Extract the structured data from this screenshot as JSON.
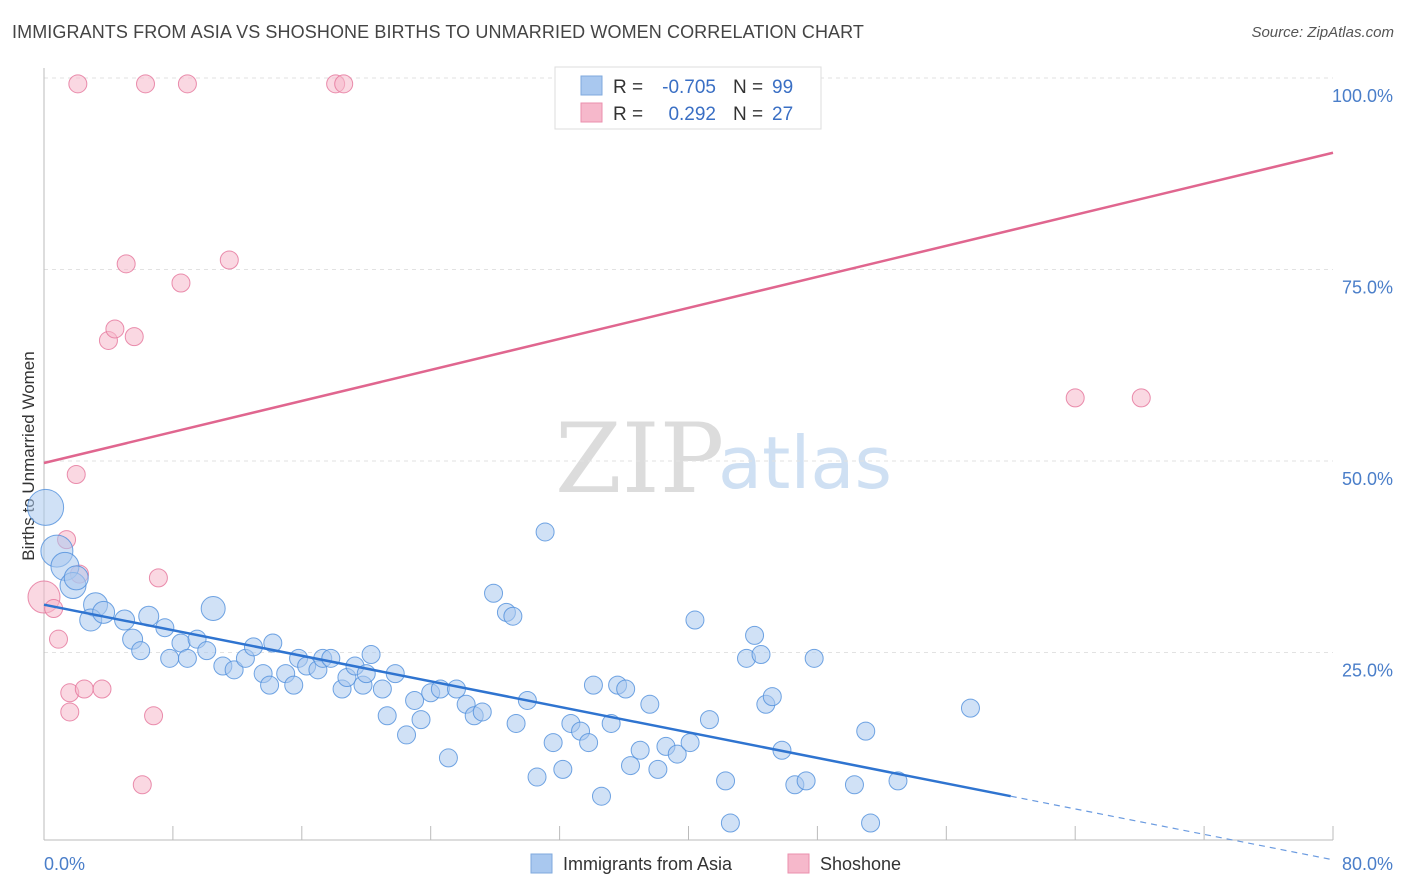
{
  "header": {
    "title": "IMMIGRANTS FROM ASIA VS SHOSHONE BIRTHS TO UNMARRIED WOMEN CORRELATION CHART",
    "source": "Source: ZipAtlas.com"
  },
  "watermark": {
    "zip": "ZIP",
    "atlas": "atlas"
  },
  "legend": {
    "rows": [
      {
        "r_label": "R =",
        "r_value": "-0.705",
        "n_label": "N =",
        "n_value": "99",
        "color": "#a9c8ef"
      },
      {
        "r_label": "R =",
        "r_value": "0.292",
        "n_label": "N =",
        "n_value": "27",
        "color": "#f6b8cb"
      }
    ]
  },
  "bottom_legend": {
    "items": [
      {
        "label": "Immigrants from Asia",
        "color": "#a9c8ef"
      },
      {
        "label": "Shoshone",
        "color": "#f6b8cb"
      }
    ]
  },
  "chart_data": {
    "type": "scatter",
    "title": "IMMIGRANTS FROM ASIA VS SHOSHONE BIRTHS TO UNMARRIED WOMEN CORRELATION CHART",
    "ylabel": "Births to Unmarried Women",
    "xlabel": "",
    "xlim": [
      0,
      80
    ],
    "ylim": [
      0,
      100
    ],
    "x_tick_labels": [
      "0.0%",
      "80.0%"
    ],
    "y_tick_labels": [
      "100.0%",
      "75.0%",
      "50.0%",
      "25.0%"
    ],
    "y_ticks": [
      100,
      75,
      50,
      25
    ],
    "grid": true,
    "colors": {
      "asia": "#4f8fdc",
      "asia_fill": "#a9c8ef",
      "shoshone": "#e5739a",
      "shoshone_fill": "#f6b8cb"
    },
    "series": [
      {
        "name": "Immigrants from Asia",
        "trend": {
          "x": [
            0,
            60
          ],
          "y": [
            31.5,
            6.5
          ],
          "dashed_to": [
            80,
            -1.8
          ]
        },
        "points": [
          [
            0.1,
            44.2,
            18
          ],
          [
            0.8,
            38.5,
            16
          ],
          [
            1.3,
            36.5,
            14
          ],
          [
            1.8,
            34.0,
            13
          ],
          [
            2.0,
            35.0,
            12
          ],
          [
            3.2,
            31.5,
            12
          ],
          [
            2.9,
            29.5,
            11
          ],
          [
            3.7,
            30.5,
            11
          ],
          [
            5.5,
            27.0,
            10
          ],
          [
            6.5,
            30.0,
            10
          ],
          [
            10.5,
            31.0,
            12
          ],
          [
            5.0,
            29.5,
            10
          ],
          [
            6.0,
            25.5,
            9
          ],
          [
            7.5,
            28.5,
            9
          ],
          [
            8.5,
            26.5,
            9
          ],
          [
            9.5,
            27.0,
            9
          ],
          [
            7.8,
            24.5,
            9
          ],
          [
            8.9,
            24.5,
            9
          ],
          [
            10.1,
            25.5,
            9
          ],
          [
            11.1,
            23.5,
            9
          ],
          [
            11.8,
            23.0,
            9
          ],
          [
            12.5,
            24.5,
            9
          ],
          [
            13.0,
            26.0,
            9
          ],
          [
            14.2,
            26.5,
            9
          ],
          [
            13.6,
            22.5,
            9
          ],
          [
            14.0,
            21.0,
            9
          ],
          [
            15.0,
            22.5,
            9
          ],
          [
            15.5,
            21.0,
            9
          ],
          [
            15.8,
            24.5,
            9
          ],
          [
            16.3,
            23.5,
            9
          ],
          [
            17.0,
            23.0,
            9
          ],
          [
            17.3,
            24.5,
            9
          ],
          [
            17.8,
            24.5,
            9
          ],
          [
            18.5,
            20.5,
            9
          ],
          [
            18.8,
            22.0,
            9
          ],
          [
            19.3,
            23.5,
            9
          ],
          [
            19.8,
            21.0,
            9
          ],
          [
            20.0,
            22.5,
            9
          ],
          [
            20.3,
            25.0,
            9
          ],
          [
            21.0,
            20.5,
            9
          ],
          [
            21.3,
            17.0,
            9
          ],
          [
            21.8,
            22.5,
            9
          ],
          [
            22.5,
            14.5,
            9
          ],
          [
            23.0,
            19.0,
            9
          ],
          [
            23.4,
            16.5,
            9
          ],
          [
            24.0,
            20.0,
            9
          ],
          [
            24.6,
            20.5,
            9
          ],
          [
            25.1,
            11.5,
            9
          ],
          [
            25.6,
            20.5,
            9
          ],
          [
            26.2,
            18.5,
            9
          ],
          [
            26.7,
            17.0,
            9
          ],
          [
            27.2,
            17.5,
            9
          ],
          [
            27.9,
            33.0,
            9
          ],
          [
            28.7,
            30.5,
            9
          ],
          [
            29.1,
            30.0,
            9
          ],
          [
            29.3,
            16.0,
            9
          ],
          [
            30.0,
            19.0,
            9
          ],
          [
            30.6,
            9.0,
            9
          ],
          [
            31.1,
            41.0,
            9
          ],
          [
            31.6,
            13.5,
            9
          ],
          [
            32.2,
            10.0,
            9
          ],
          [
            32.7,
            16.0,
            9
          ],
          [
            33.3,
            15.0,
            9
          ],
          [
            33.8,
            13.5,
            9
          ],
          [
            34.1,
            21.0,
            9
          ],
          [
            34.6,
            6.5,
            9
          ],
          [
            35.2,
            16.0,
            9
          ],
          [
            35.6,
            21.0,
            9
          ],
          [
            36.1,
            20.5,
            9
          ],
          [
            36.4,
            10.5,
            9
          ],
          [
            37.0,
            12.5,
            9
          ],
          [
            37.6,
            18.5,
            9
          ],
          [
            38.1,
            10.0,
            9
          ],
          [
            38.6,
            13.0,
            9
          ],
          [
            39.3,
            12.0,
            9
          ],
          [
            40.1,
            13.5,
            9
          ],
          [
            40.4,
            29.5,
            9
          ],
          [
            41.3,
            16.5,
            9
          ],
          [
            42.3,
            8.5,
            9
          ],
          [
            42.6,
            3.0,
            9
          ],
          [
            43.6,
            24.5,
            9
          ],
          [
            44.1,
            27.5,
            9
          ],
          [
            44.5,
            25.0,
            9
          ],
          [
            44.8,
            18.5,
            9
          ],
          [
            45.2,
            19.5,
            9
          ],
          [
            45.8,
            12.5,
            9
          ],
          [
            46.6,
            8.0,
            9
          ],
          [
            47.3,
            8.5,
            9
          ],
          [
            47.8,
            24.5,
            9
          ],
          [
            50.3,
            8.0,
            9
          ],
          [
            51.0,
            15.0,
            9
          ],
          [
            51.3,
            3.0,
            9
          ],
          [
            53.0,
            8.5,
            9
          ],
          [
            57.5,
            18.0,
            9
          ]
        ]
      },
      {
        "name": "Shoshone",
        "trend": {
          "x": [
            0,
            80
          ],
          "y": [
            50.0,
            90.5
          ]
        },
        "points": [
          [
            0.0,
            32.5,
            16
          ],
          [
            0.6,
            31.0,
            9
          ],
          [
            0.9,
            27.0,
            9
          ],
          [
            1.4,
            40.0,
            9
          ],
          [
            2.0,
            48.5,
            9
          ],
          [
            2.2,
            35.5,
            9
          ],
          [
            1.6,
            20.0,
            9
          ],
          [
            1.6,
            17.5,
            9
          ],
          [
            2.5,
            20.5,
            9
          ],
          [
            3.6,
            20.5,
            9
          ],
          [
            4.0,
            66.0,
            9
          ],
          [
            4.4,
            67.5,
            9
          ],
          [
            5.1,
            76.0,
            9
          ],
          [
            5.6,
            66.5,
            9
          ],
          [
            6.1,
            8.0,
            9
          ],
          [
            6.8,
            17.0,
            9
          ],
          [
            7.1,
            35.0,
            9
          ],
          [
            8.5,
            73.5,
            9
          ],
          [
            11.5,
            76.5,
            9
          ],
          [
            2.1,
            99.5,
            9
          ],
          [
            6.3,
            99.5,
            9
          ],
          [
            8.9,
            99.5,
            9
          ],
          [
            18.1,
            99.5,
            9
          ],
          [
            18.6,
            99.5,
            9
          ],
          [
            43.6,
            99.5,
            9
          ],
          [
            64.0,
            58.5,
            9
          ],
          [
            68.1,
            58.5,
            9
          ]
        ]
      }
    ]
  }
}
